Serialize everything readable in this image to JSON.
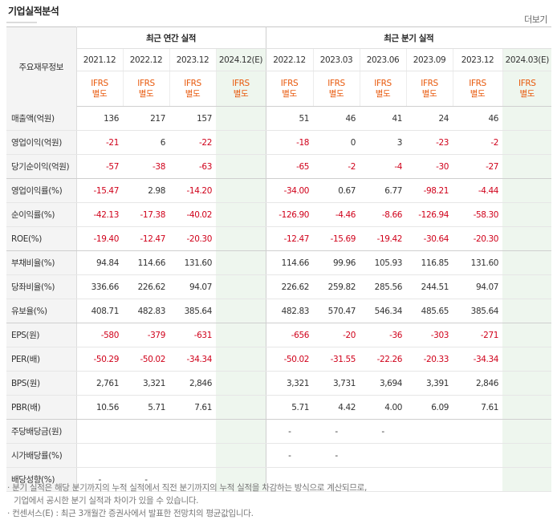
{
  "title": "기업실적분석",
  "more_label": "더보기",
  "header": {
    "row_label": "주요재무정보",
    "annual_group": "최근 연간 실적",
    "quarter_group": "최근 분기 실적",
    "annual_periods": [
      "2021.12",
      "2022.12",
      "2023.12",
      "2024.12(E)"
    ],
    "quarter_periods": [
      "2022.12",
      "2023.03",
      "2023.06",
      "2023.09",
      "2023.12",
      "2024.03(E)"
    ],
    "ifrs_top": "IFRS",
    "ifrs_bottom": "별도"
  },
  "rows": [
    {
      "label": "매출액(억원)",
      "annual": [
        "136",
        "217",
        "157",
        ""
      ],
      "quarter": [
        "51",
        "46",
        "41",
        "24",
        "46",
        ""
      ]
    },
    {
      "label": "영업이익(억원)",
      "annual": [
        "-21",
        "6",
        "-22",
        ""
      ],
      "quarter": [
        "-18",
        "0",
        "3",
        "-23",
        "-2",
        ""
      ]
    },
    {
      "label": "당기순이익(억원)",
      "annual": [
        "-57",
        "-38",
        "-63",
        ""
      ],
      "quarter": [
        "-65",
        "-2",
        "-4",
        "-30",
        "-27",
        ""
      ]
    },
    {
      "label": "영업이익률(%)",
      "annual": [
        "-15.47",
        "2.98",
        "-14.20",
        ""
      ],
      "quarter": [
        "-34.00",
        "0.67",
        "6.77",
        "-98.21",
        "-4.44",
        ""
      ]
    },
    {
      "label": "순이익률(%)",
      "annual": [
        "-42.13",
        "-17.38",
        "-40.02",
        ""
      ],
      "quarter": [
        "-126.90",
        "-4.46",
        "-8.66",
        "-126.94",
        "-58.30",
        ""
      ]
    },
    {
      "label": "ROE(%)",
      "annual": [
        "-19.40",
        "-12.47",
        "-20.30",
        ""
      ],
      "quarter": [
        "-12.47",
        "-15.69",
        "-19.42",
        "-30.64",
        "-20.30",
        ""
      ]
    },
    {
      "label": "부채비율(%)",
      "annual": [
        "94.84",
        "114.66",
        "131.60",
        ""
      ],
      "quarter": [
        "114.66",
        "99.96",
        "105.93",
        "116.85",
        "131.60",
        ""
      ]
    },
    {
      "label": "당좌비율(%)",
      "annual": [
        "336.66",
        "226.62",
        "94.07",
        ""
      ],
      "quarter": [
        "226.62",
        "259.82",
        "285.56",
        "244.51",
        "94.07",
        ""
      ]
    },
    {
      "label": "유보율(%)",
      "annual": [
        "408.71",
        "482.83",
        "385.64",
        ""
      ],
      "quarter": [
        "482.83",
        "570.47",
        "546.34",
        "485.65",
        "385.64",
        ""
      ]
    },
    {
      "label": "EPS(원)",
      "annual": [
        "-580",
        "-379",
        "-631",
        ""
      ],
      "quarter": [
        "-656",
        "-20",
        "-36",
        "-303",
        "-271",
        ""
      ]
    },
    {
      "label": "PER(배)",
      "annual": [
        "-50.29",
        "-50.02",
        "-34.34",
        ""
      ],
      "quarter": [
        "-50.02",
        "-31.55",
        "-22.26",
        "-20.33",
        "-34.34",
        ""
      ]
    },
    {
      "label": "BPS(원)",
      "annual": [
        "2,761",
        "3,321",
        "2,846",
        ""
      ],
      "quarter": [
        "3,321",
        "3,731",
        "3,694",
        "3,391",
        "2,846",
        ""
      ]
    },
    {
      "label": "PBR(배)",
      "annual": [
        "10.56",
        "5.71",
        "7.61",
        ""
      ],
      "quarter": [
        "5.71",
        "4.42",
        "4.00",
        "6.09",
        "7.61",
        ""
      ]
    },
    {
      "label": "주당배당금(원)",
      "annual": [
        "",
        "",
        "",
        ""
      ],
      "quarter": [
        "-",
        "-",
        "-",
        "",
        "",
        ""
      ]
    },
    {
      "label": "시가배당률(%)",
      "annual": [
        "",
        "",
        "",
        ""
      ],
      "quarter": [
        "-",
        "-",
        "",
        "",
        "",
        ""
      ]
    },
    {
      "label": "배당성향(%)",
      "annual": [
        "-",
        "-",
        "",
        ""
      ],
      "quarter": [
        "",
        "",
        "",
        "",
        "",
        ""
      ]
    }
  ],
  "notes": [
    "· 분기 실적은 해당 분기까지의 누적 실적에서 직전 분기까지의 누적 실적을 차감하는 방식으로 계산되므로,",
    "기업에서 공시한 분기 실적과 차이가 있을 수 있습니다.",
    "· 컨센서스(E) : 최근 3개월간 증권사에서 발표한 전망치의 평균값입니다."
  ]
}
